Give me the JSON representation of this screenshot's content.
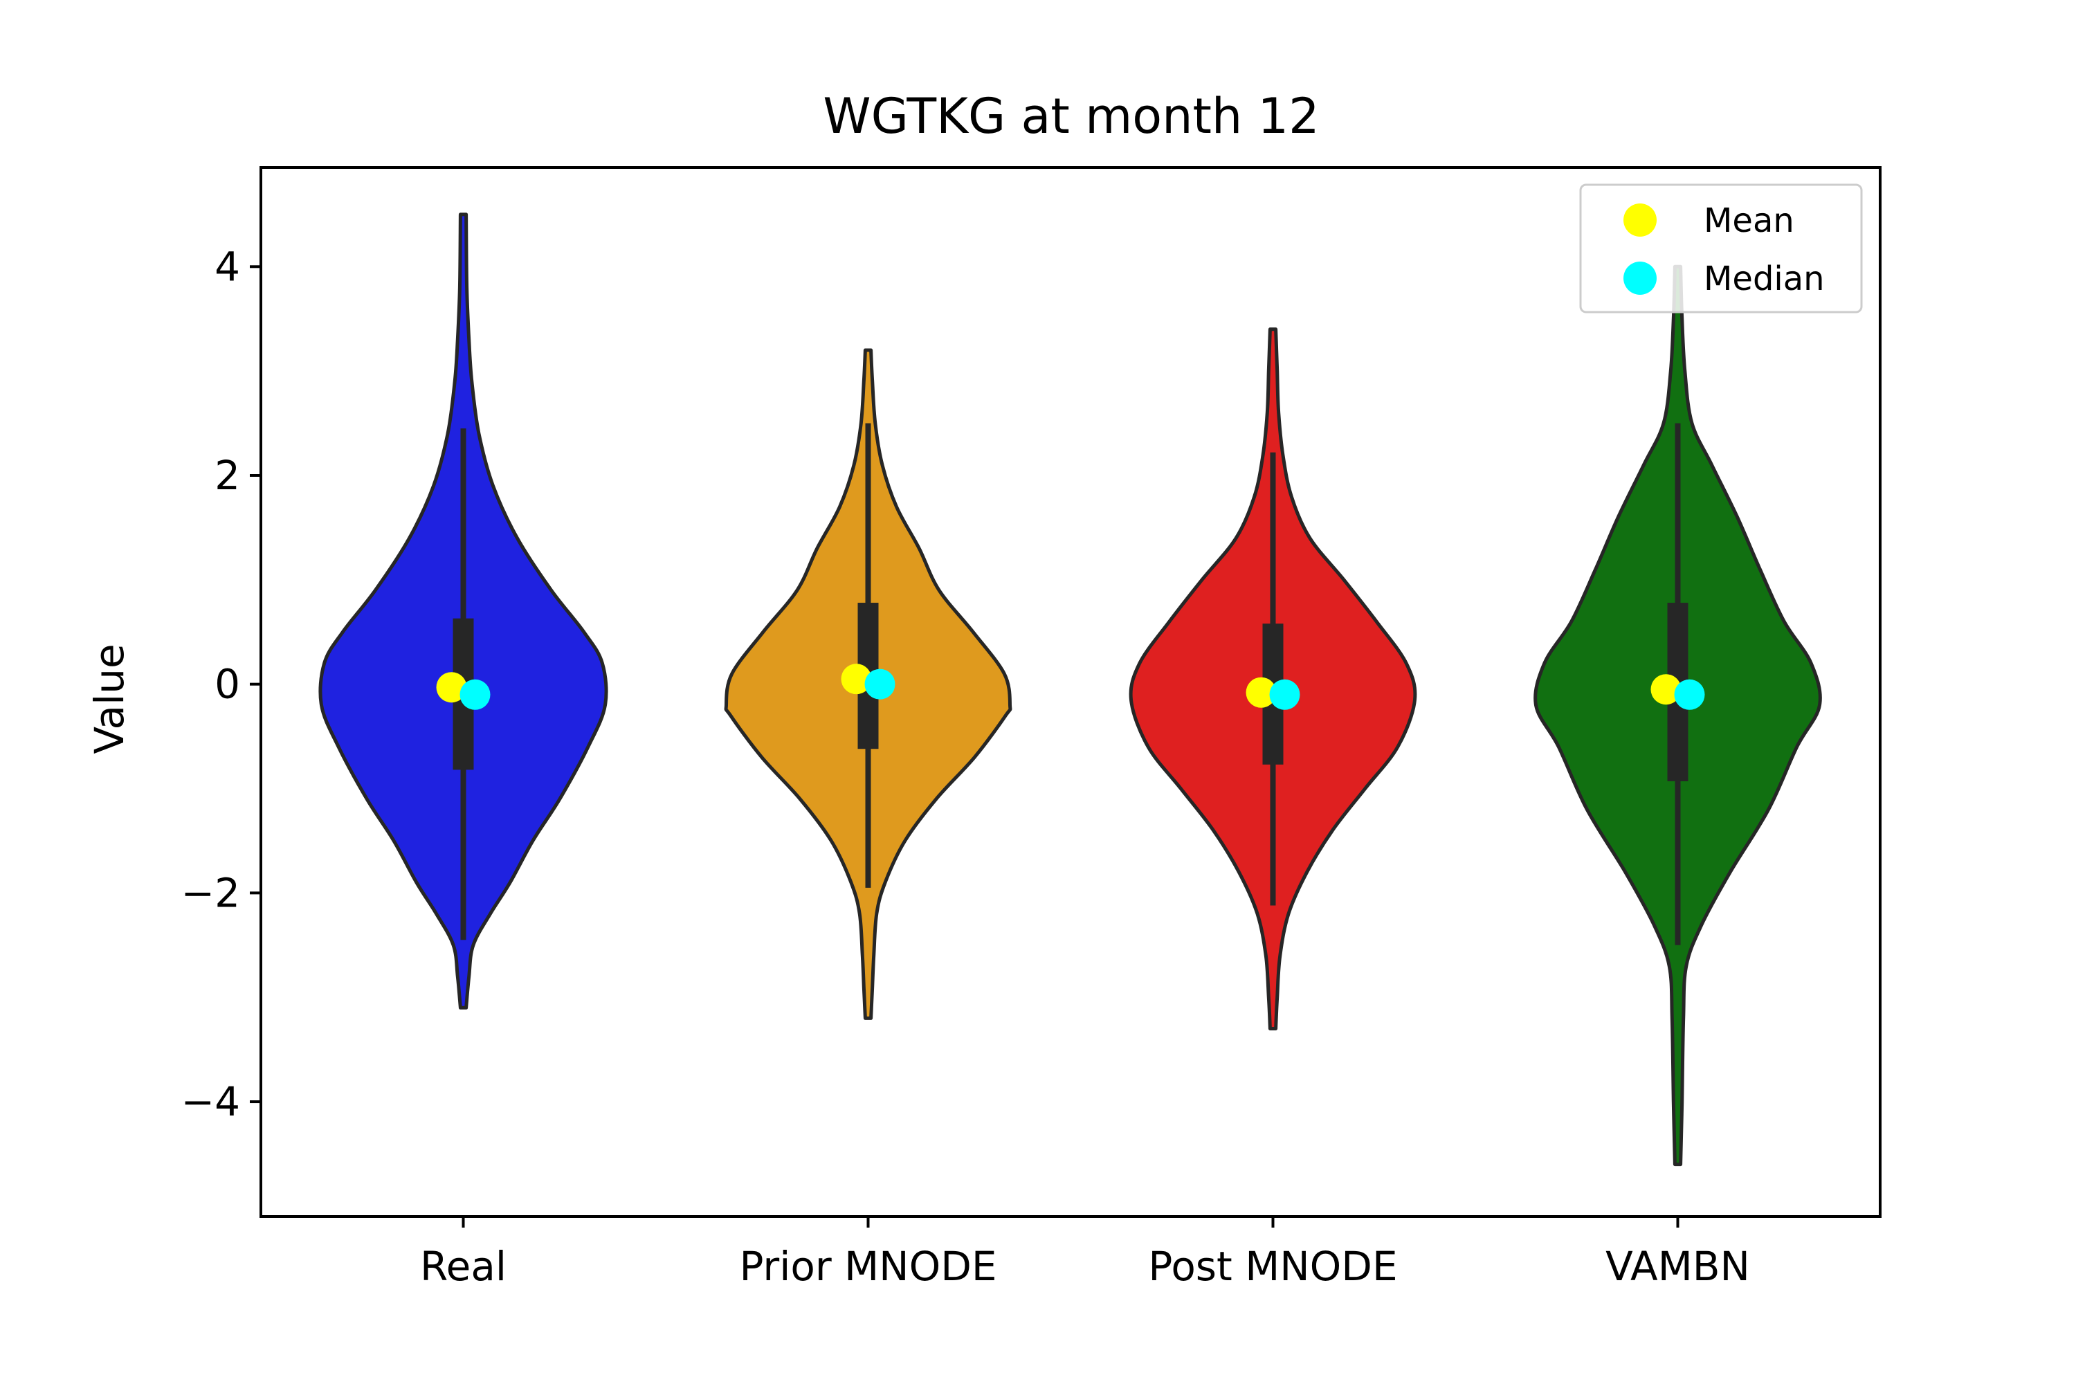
{
  "chart_data": {
    "type": "violin",
    "title": "WGTKG at month 12",
    "xlabel": "",
    "ylabel": "Value",
    "ylim": [
      -5.1,
      4.95
    ],
    "yticks": [
      4,
      2,
      0,
      -2,
      -4
    ],
    "ytick_labels": [
      "4",
      "2",
      "0",
      "−2",
      "−4"
    ],
    "grid": false,
    "legend_position": "top-right",
    "categories": [
      "Real",
      "Prior MNODE",
      "Post MNODE",
      "VAMBN"
    ],
    "colors": [
      "#1f22e0",
      "#df9a1e",
      "#df2020",
      "#117011"
    ],
    "series": [
      {
        "name": "Real",
        "mean": -0.03,
        "median": -0.1,
        "q1": -0.82,
        "q3": 0.63,
        "whisker_low": -2.45,
        "whisker_high": 2.45,
        "min": -3.1,
        "max": 4.5,
        "density_profile": [
          [
            -3.1,
            0.02
          ],
          [
            -2.8,
            0.04
          ],
          [
            -2.5,
            0.07
          ],
          [
            -2.2,
            0.19
          ],
          [
            -1.9,
            0.33
          ],
          [
            -1.5,
            0.49
          ],
          [
            -1.1,
            0.68
          ],
          [
            -0.6,
            0.88
          ],
          [
            -0.2,
            1.0
          ],
          [
            0.2,
            0.98
          ],
          [
            0.5,
            0.85
          ],
          [
            0.9,
            0.62
          ],
          [
            1.4,
            0.38
          ],
          [
            1.9,
            0.21
          ],
          [
            2.4,
            0.11
          ],
          [
            2.9,
            0.06
          ],
          [
            3.3,
            0.04
          ],
          [
            3.8,
            0.025
          ],
          [
            4.5,
            0.02
          ]
        ]
      },
      {
        "name": "Prior MNODE",
        "mean": 0.05,
        "median": 0.0,
        "q1": -0.62,
        "q3": 0.78,
        "whisker_low": -1.95,
        "whisker_high": 2.5,
        "min": -3.2,
        "max": 3.2,
        "density_profile": [
          [
            -3.2,
            0.02
          ],
          [
            -2.9,
            0.03
          ],
          [
            -2.6,
            0.04
          ],
          [
            -2.2,
            0.06
          ],
          [
            -1.9,
            0.12
          ],
          [
            -1.5,
            0.26
          ],
          [
            -1.1,
            0.48
          ],
          [
            -0.7,
            0.75
          ],
          [
            -0.3,
            0.97
          ],
          [
            -0.2,
            1.0
          ],
          [
            0.1,
            0.96
          ],
          [
            0.5,
            0.74
          ],
          [
            0.9,
            0.5
          ],
          [
            1.3,
            0.36
          ],
          [
            1.7,
            0.2
          ],
          [
            2.1,
            0.1
          ],
          [
            2.5,
            0.05
          ],
          [
            2.9,
            0.03
          ],
          [
            3.2,
            0.02
          ]
        ]
      },
      {
        "name": "Post MNODE",
        "mean": -0.08,
        "median": -0.1,
        "q1": -0.77,
        "q3": 0.58,
        "whisker_low": -2.12,
        "whisker_high": 2.22,
        "min": -3.3,
        "max": 3.4,
        "density_profile": [
          [
            -3.3,
            0.02
          ],
          [
            -3.0,
            0.03
          ],
          [
            -2.6,
            0.05
          ],
          [
            -2.2,
            0.11
          ],
          [
            -1.8,
            0.24
          ],
          [
            -1.4,
            0.42
          ],
          [
            -1.0,
            0.65
          ],
          [
            -0.6,
            0.88
          ],
          [
            -0.15,
            1.0
          ],
          [
            0.2,
            0.94
          ],
          [
            0.6,
            0.73
          ],
          [
            1.0,
            0.5
          ],
          [
            1.4,
            0.26
          ],
          [
            1.8,
            0.13
          ],
          [
            2.2,
            0.07
          ],
          [
            2.6,
            0.04
          ],
          [
            3.0,
            0.03
          ],
          [
            3.4,
            0.02
          ]
        ]
      },
      {
        "name": "VAMBN",
        "mean": -0.05,
        "median": -0.1,
        "q1": -0.93,
        "q3": 0.78,
        "whisker_low": -2.5,
        "whisker_high": 2.5,
        "min": -4.6,
        "max": 4.0,
        "density_profile": [
          [
            -4.6,
            0.02
          ],
          [
            -4.0,
            0.03
          ],
          [
            -3.2,
            0.04
          ],
          [
            -2.7,
            0.06
          ],
          [
            -2.3,
            0.17
          ],
          [
            -1.8,
            0.37
          ],
          [
            -1.2,
            0.64
          ],
          [
            -0.6,
            0.84
          ],
          [
            -0.2,
            1.0
          ],
          [
            0.2,
            0.94
          ],
          [
            0.6,
            0.75
          ],
          [
            1.1,
            0.58
          ],
          [
            1.6,
            0.42
          ],
          [
            2.1,
            0.24
          ],
          [
            2.5,
            0.1
          ],
          [
            3.0,
            0.05
          ],
          [
            3.5,
            0.03
          ],
          [
            4.0,
            0.02
          ]
        ]
      }
    ],
    "legend": [
      {
        "label": "Mean",
        "color": "#ffff00"
      },
      {
        "label": "Median",
        "color": "#00ffff"
      }
    ]
  }
}
